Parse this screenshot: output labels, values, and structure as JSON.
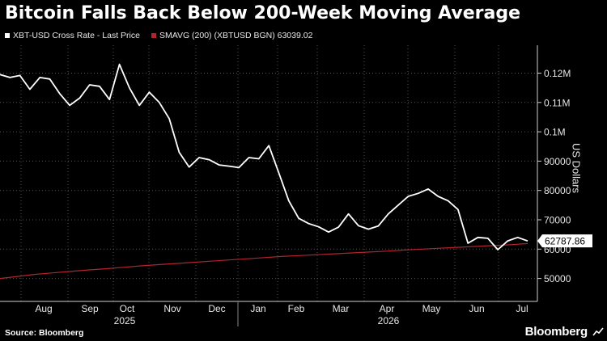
{
  "title": "Bitcoin Falls Back Below 200-Week Moving Average",
  "source": "Source: Bloomberg",
  "brand": "Bloomberg",
  "chart_data": {
    "type": "line",
    "title": "Bitcoin Falls Back Below 200-Week Moving Average",
    "ylabel": "US Dollars",
    "ylim": [
      42000,
      129000
    ],
    "grid": true,
    "y_ticks": [
      50000,
      60000,
      70000,
      80000,
      90000,
      100000,
      110000,
      120000
    ],
    "y_tick_labels": [
      "50000",
      "60000",
      "70000",
      "80000",
      "90000",
      "0.1M",
      "0.11M",
      "0.12M"
    ],
    "x_tick_labels": [
      "Aug",
      "Sep",
      "Oct",
      "Nov",
      "Dec",
      "Jan",
      "Feb",
      "Mar",
      "Apr",
      "May",
      "Jun",
      "Jul"
    ],
    "x_year_labels": [
      "2025",
      "2026"
    ],
    "last_value_label": "62787.86",
    "series": [
      {
        "name": "XBT-USD Cross Rate - Last Price",
        "color": "#ffffff",
        "values": [
          119500,
          118500,
          119200,
          114500,
          118500,
          118000,
          113000,
          109000,
          111500,
          116000,
          115500,
          111000,
          123000,
          115000,
          109000,
          113500,
          110000,
          104500,
          93000,
          88000,
          91200,
          90500,
          88700,
          88300,
          87800,
          91200,
          90800,
          95300,
          86000,
          76500,
          70500,
          68700,
          67600,
          65800,
          67500,
          72000,
          68000,
          66800,
          67900,
          72000,
          75000,
          78000,
          79000,
          80500,
          78000,
          76500,
          73500,
          62000,
          64000,
          63700,
          59800,
          62800,
          64000,
          62788
        ]
      },
      {
        "name": "SMAVG (200) (XBTUSD BGN) 63039.02",
        "color": "#b3232e",
        "values": [
          50000,
          50700,
          51400,
          51900,
          52400,
          52900,
          53300,
          53800,
          54300,
          54700,
          55100,
          55500,
          55900,
          56300,
          56700,
          57100,
          57500,
          57800,
          58100,
          58400,
          58700,
          59000,
          59300,
          59700,
          60000,
          60300,
          60600,
          60900,
          61200,
          61500,
          61900
        ]
      }
    ]
  }
}
